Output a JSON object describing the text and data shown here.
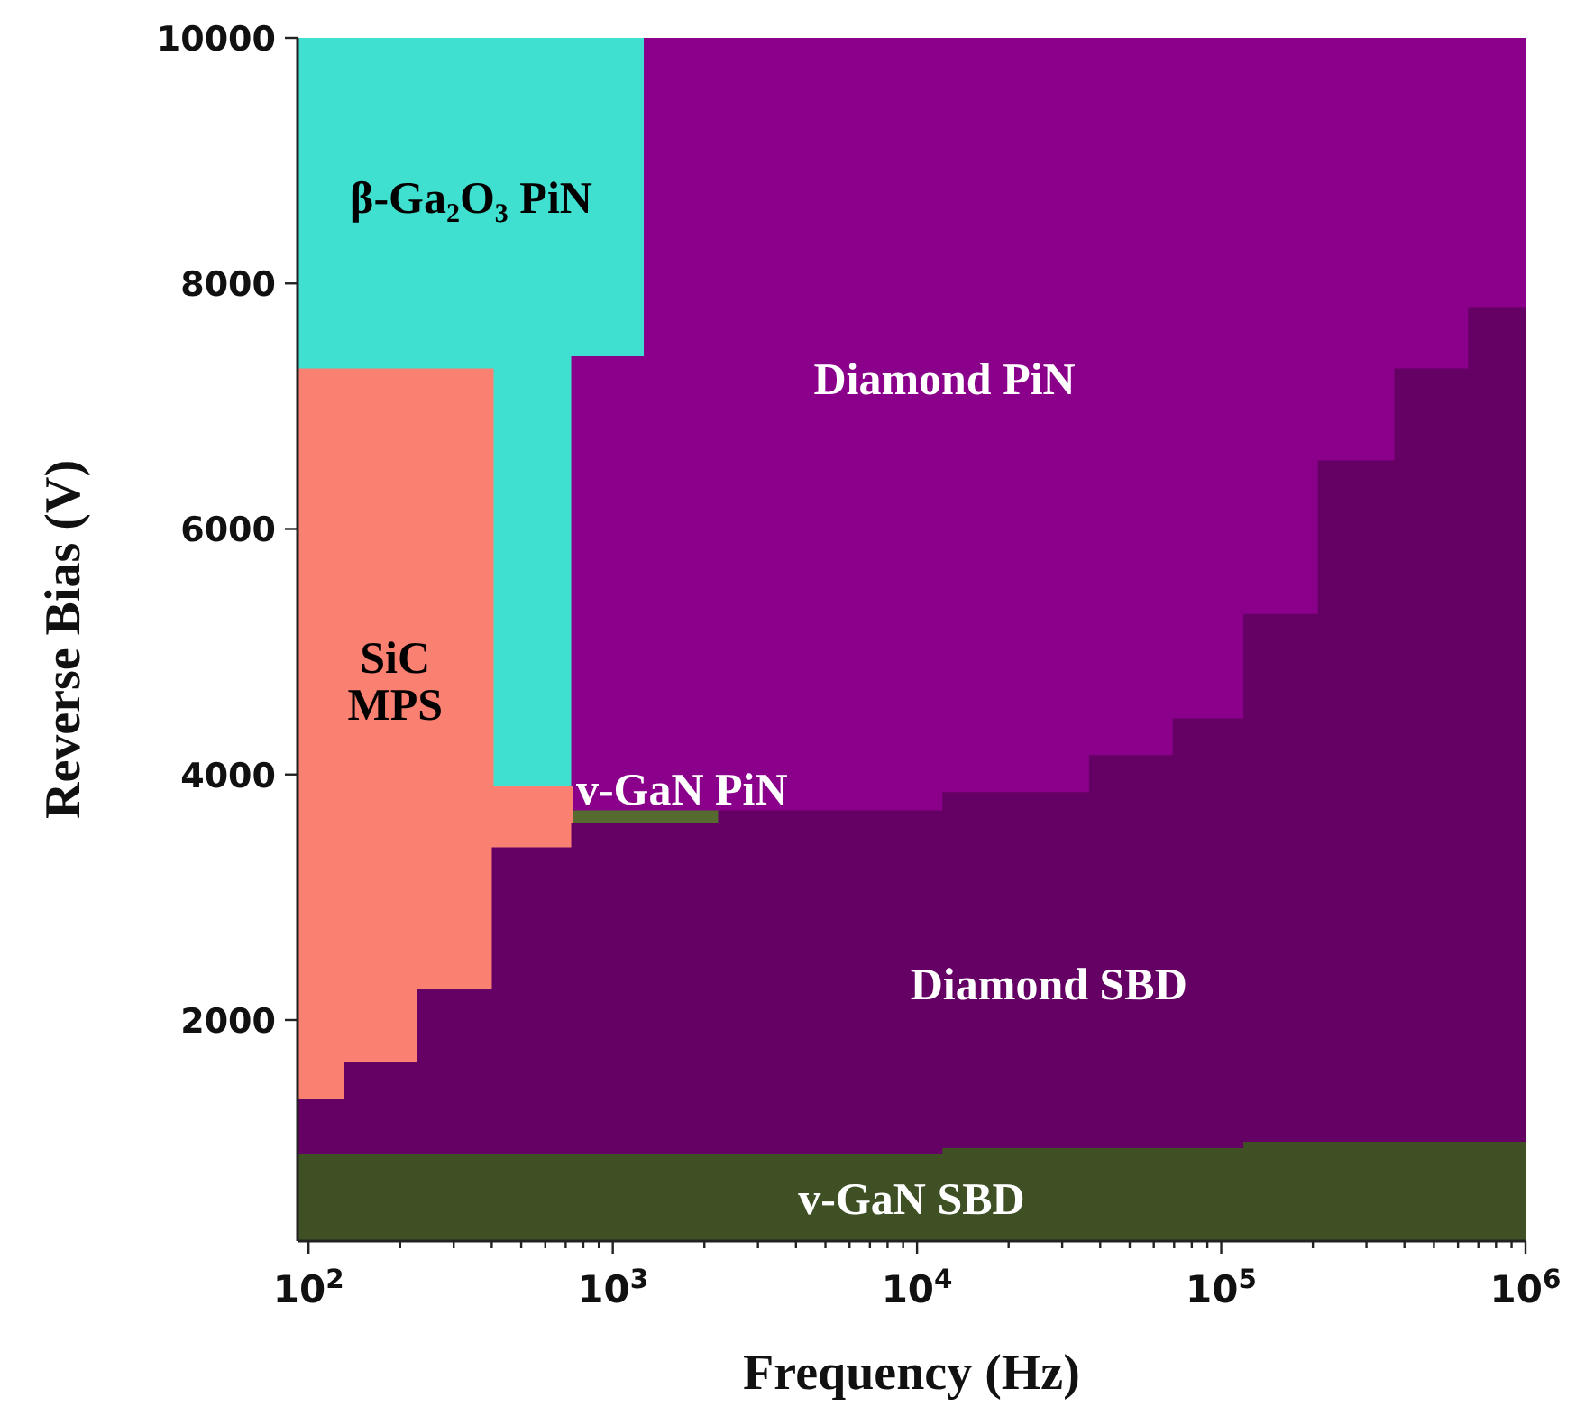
{
  "chart_data": {
    "type": "area",
    "xlabel": "Frequency (Hz)",
    "ylabel": "Reverse Bias (V)",
    "log": "x",
    "x": [
      92,
      132,
      229,
      403,
      735,
      1273,
      2234,
      12200,
      37000,
      69700,
      119000,
      209000,
      373000,
      652000,
      1000000
    ],
    "xlim": [
      92,
      1000000
    ],
    "xticks": [
      {
        "value": 100,
        "label": "10$^{2}$"
      },
      {
        "value": 200,
        "label": null
      },
      {
        "value": 300,
        "label": null
      },
      {
        "value": 400,
        "label": null
      },
      {
        "value": 500,
        "label": null
      },
      {
        "value": 600,
        "label": null
      },
      {
        "value": 700,
        "label": null
      },
      {
        "value": 800,
        "label": null
      },
      {
        "value": 900,
        "label": null
      },
      {
        "value": 1000,
        "label": "10$^{3}$"
      },
      {
        "value": 2000,
        "label": null
      },
      {
        "value": 3000,
        "label": null
      },
      {
        "value": 4000,
        "label": null
      },
      {
        "value": 5000,
        "label": null
      },
      {
        "value": 6000,
        "label": null
      },
      {
        "value": 7000,
        "label": null
      },
      {
        "value": 8000,
        "label": null
      },
      {
        "value": 9000,
        "label": null
      },
      {
        "value": 10000,
        "label": "10$^{4}$"
      },
      {
        "value": 20000,
        "label": null
      },
      {
        "value": 30000,
        "label": null
      },
      {
        "value": 40000,
        "label": null
      },
      {
        "value": 50000,
        "label": null
      },
      {
        "value": 60000,
        "label": null
      },
      {
        "value": 70000,
        "label": null
      },
      {
        "value": 80000,
        "label": null
      },
      {
        "value": 90000,
        "label": null
      },
      {
        "value": 100000,
        "label": "10$^{5}$"
      },
      {
        "value": 200000,
        "label": null
      },
      {
        "value": 300000,
        "label": null
      },
      {
        "value": 400000,
        "label": null
      },
      {
        "value": 500000,
        "label": null
      },
      {
        "value": 600000,
        "label": null
      },
      {
        "value": 700000,
        "label": null
      },
      {
        "value": 800000,
        "label": null
      },
      {
        "value": 900000,
        "label": null
      },
      {
        "value": 1000000,
        "label": "10$^{6}$"
      }
    ],
    "ylim": [
      200,
      10000
    ],
    "yticks": [
      2000,
      4000,
      6000,
      8000,
      10000
    ],
    "series": [
      {
        "name": "v-GaN SBD",
        "color": "#3f5024",
        "values": [
          900,
          900,
          900,
          900,
          900,
          900,
          900,
          950,
          950,
          950,
          1000,
          1000,
          1000,
          1000,
          1000
        ]
      },
      {
        "name": "Diamond SBD",
        "color": "#650065",
        "values": [
          1350,
          1650,
          2250,
          3400,
          3600,
          3600,
          3700,
          3850,
          4150,
          4450,
          5300,
          6550,
          7300,
          7800,
          7800
        ]
      },
      {
        "name": "SiC MPS",
        "color": "#fa8072",
        "values": [
          7300,
          7300,
          7300,
          3900,
          3900,
          null,
          null,
          null,
          null,
          null,
          null,
          null,
          null,
          null,
          null
        ]
      },
      {
        "name": "v-GaN PiN",
        "color": "#556b2f",
        "values": [
          null,
          null,
          null,
          null,
          3700,
          3700,
          3700,
          null,
          null,
          null,
          null,
          null,
          null,
          null,
          null
        ]
      },
      {
        "name": "Diamond PiN",
        "color": "#8b008b",
        "values": [
          null,
          null,
          null,
          null,
          7400,
          10000,
          10000,
          10000,
          10000,
          10000,
          10000,
          10000,
          10000,
          10000,
          10000
        ]
      },
      {
        "name": "β-Ga₂O₃ PiN",
        "color": "#40e0d0",
        "values": [
          10000,
          10000,
          10000,
          10000,
          10000,
          10000,
          null,
          null,
          null,
          null,
          null,
          null,
          null,
          null,
          null
        ]
      }
    ]
  }
}
